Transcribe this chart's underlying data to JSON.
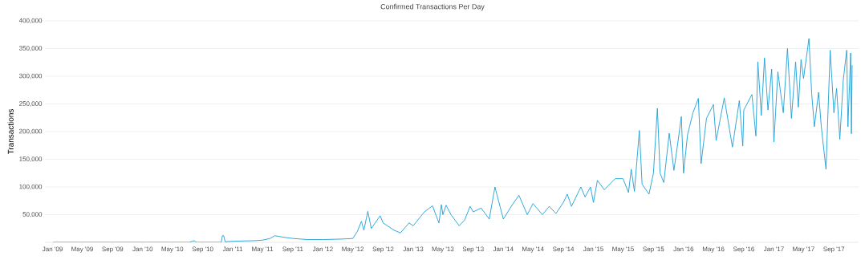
{
  "chart_data": {
    "type": "line",
    "title": "Confirmed Transactions Per Day",
    "ylabel": "Transactions",
    "color": "#1a9fd6",
    "grid": "y",
    "marker": "none",
    "xlim": [
      "2008-12-01",
      "2017-12-10"
    ],
    "ylim": [
      0,
      400000
    ],
    "xticks": [
      {
        "value": "2009-01",
        "label": "Jan '09"
      },
      {
        "value": "2009-05",
        "label": "May '09"
      },
      {
        "value": "2009-09",
        "label": "Sep '09"
      },
      {
        "value": "2010-01",
        "label": "Jan '10"
      },
      {
        "value": "2010-05",
        "label": "May '10"
      },
      {
        "value": "2010-09",
        "label": "Sep '10"
      },
      {
        "value": "2011-01",
        "label": "Jan '11"
      },
      {
        "value": "2011-05",
        "label": "May '11"
      },
      {
        "value": "2011-09",
        "label": "Sep '11"
      },
      {
        "value": "2012-01",
        "label": "Jan '12"
      },
      {
        "value": "2012-05",
        "label": "May '12"
      },
      {
        "value": "2012-09",
        "label": "Sep '12"
      },
      {
        "value": "2013-01",
        "label": "Jan '13"
      },
      {
        "value": "2013-05",
        "label": "May '13"
      },
      {
        "value": "2013-09",
        "label": "Sep '13"
      },
      {
        "value": "2014-01",
        "label": "Jan '14"
      },
      {
        "value": "2014-05",
        "label": "May '14"
      },
      {
        "value": "2014-09",
        "label": "Sep '14"
      },
      {
        "value": "2015-01",
        "label": "Jan '15"
      },
      {
        "value": "2015-05",
        "label": "May '15"
      },
      {
        "value": "2015-09",
        "label": "Sep '15"
      },
      {
        "value": "2016-01",
        "label": "Jan '16"
      },
      {
        "value": "2016-05",
        "label": "May '16"
      },
      {
        "value": "2016-09",
        "label": "Sep '16"
      },
      {
        "value": "2017-01",
        "label": "Jan '17"
      },
      {
        "value": "2017-05",
        "label": "May '17"
      },
      {
        "value": "2017-09",
        "label": "Sep '17"
      }
    ],
    "yticks": [
      {
        "value": 50000,
        "label": "50,000"
      },
      {
        "value": 100000,
        "label": "100,000"
      },
      {
        "value": 150000,
        "label": "150,000"
      },
      {
        "value": 200000,
        "label": "200,000"
      },
      {
        "value": 250000,
        "label": "250,000"
      },
      {
        "value": 300000,
        "label": "300,000"
      },
      {
        "value": 350000,
        "label": "350,000"
      },
      {
        "value": 400000,
        "label": "400,000"
      }
    ],
    "x": [
      "2009-01-03",
      "2010-07-10",
      "2010-07-20",
      "2010-07-30",
      "2010-08-05",
      "2010-11-15",
      "2010-11-20",
      "2010-11-25",
      "2010-12-01",
      "2011-01-01",
      "2011-04-01",
      "2011-05-01",
      "2011-06-01",
      "2011-06-20",
      "2011-07-15",
      "2011-09-01",
      "2011-11-01",
      "2012-01-01",
      "2012-03-20",
      "2012-05-01",
      "2012-05-20",
      "2012-06-05",
      "2012-06-15",
      "2012-07-01",
      "2012-07-15",
      "2012-08-20",
      "2012-09-01",
      "2012-10-15",
      "2012-11-10",
      "2012-12-15",
      "2013-01-01",
      "2013-02-15",
      "2013-03-20",
      "2013-04-15",
      "2013-04-25",
      "2013-05-01",
      "2013-05-14",
      "2013-06-03",
      "2013-07-06",
      "2013-07-28",
      "2013-08-19",
      "2013-09-01",
      "2013-10-03",
      "2013-11-05",
      "2013-11-28",
      "2014-01-01",
      "2014-02-02",
      "2014-03-05",
      "2014-04-08",
      "2014-05-01",
      "2014-06-08",
      "2014-07-06",
      "2014-08-02",
      "2014-09-01",
      "2014-09-17",
      "2014-10-04",
      "2014-11-11",
      "2014-11-28",
      "2014-12-20",
      "2015-01-01",
      "2015-01-17",
      "2015-02-14",
      "2015-03-30",
      "2015-05-01",
      "2015-05-23",
      "2015-06-03",
      "2015-06-16",
      "2015-07-06",
      "2015-07-17",
      "2015-08-14",
      "2015-09-01",
      "2015-09-17",
      "2015-09-28",
      "2015-10-13",
      "2015-11-04",
      "2015-11-23",
      "2015-12-07",
      "2015-12-23",
      "2016-01-01",
      "2016-01-17",
      "2016-02-08",
      "2016-03-01",
      "2016-03-12",
      "2016-04-03",
      "2016-05-01",
      "2016-05-12",
      "2016-06-14",
      "2016-07-17",
      "2016-08-14",
      "2016-08-28",
      "2016-09-01",
      "2016-10-04",
      "2016-10-20",
      "2016-10-28",
      "2016-11-11",
      "2016-11-24",
      "2016-12-08",
      "2016-12-23",
      "2017-01-01",
      "2017-01-17",
      "2017-02-08",
      "2017-02-25",
      "2017-03-13",
      "2017-03-30",
      "2017-04-10",
      "2017-04-21",
      "2017-05-01",
      "2017-05-23",
      "2017-06-03",
      "2017-06-14",
      "2017-07-01",
      "2017-07-12",
      "2017-07-31",
      "2017-08-17",
      "2017-09-01",
      "2017-09-12",
      "2017-09-25",
      "2017-10-09",
      "2017-10-23",
      "2017-10-28",
      "2017-11-08",
      "2017-11-11",
      "2017-11-14"
    ],
    "values": [
      0,
      0,
      2000,
      3000,
      0,
      0,
      12000,
      12000,
      1000,
      2000,
      3000,
      4000,
      7000,
      12000,
      10000,
      7000,
      5000,
      5000,
      6000,
      7000,
      20000,
      38000,
      22000,
      56000,
      25000,
      48000,
      35000,
      22000,
      17000,
      35000,
      30000,
      55000,
      66000,
      35000,
      68000,
      50000,
      67000,
      50000,
      30000,
      40000,
      65000,
      55000,
      62000,
      42000,
      100000,
      42000,
      65000,
      85000,
      50000,
      70000,
      50000,
      65000,
      52000,
      72000,
      87000,
      65000,
      100000,
      82000,
      100000,
      72000,
      112000,
      95000,
      115000,
      115000,
      90000,
      132000,
      92000,
      202000,
      105000,
      87000,
      125000,
      242000,
      125000,
      108000,
      197000,
      130000,
      174000,
      227000,
      125000,
      194000,
      234000,
      260000,
      142000,
      224000,
      249000,
      184000,
      261000,
      172000,
      256000,
      174000,
      239000,
      267000,
      192000,
      326000,
      229000,
      333000,
      239000,
      313000,
      181000,
      308000,
      234000,
      350000,
      224000,
      326000,
      244000,
      330000,
      296000,
      368000,
      269000,
      209000,
      271000,
      209000,
      132000,
      347000,
      234000,
      278000,
      186000,
      293000,
      347000,
      209000,
      342000,
      196000,
      320000
    ]
  }
}
